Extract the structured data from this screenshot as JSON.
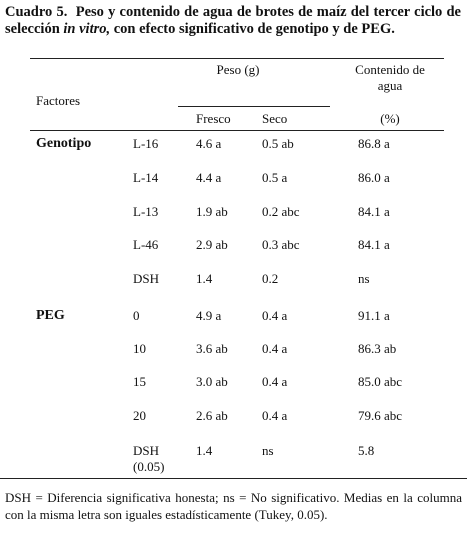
{
  "caption": {
    "label": "Cuadro 5.",
    "text_1": "Peso y contenido de agua de brotes de maíz del tercer ciclo de selección",
    "italic": "in vitro,",
    "text_2": "con efecto significativo de genotipo y de PEG."
  },
  "table": {
    "header": {
      "factores": "Factores",
      "peso": "Peso (g)",
      "fresco": "Fresco",
      "seco": "Seco",
      "agua": "Contenido de agua",
      "unit": "(%)"
    },
    "rows": [
      [
        "Genotipo",
        "L-16",
        "4.6 a",
        "0.5 ab",
        "86.8 a"
      ],
      [
        null,
        "L-14",
        "4.4 a",
        "0.5 a",
        "86.0 a"
      ],
      [
        null,
        "L-13",
        "1.9 ab",
        "0.2 abc",
        "84.1 a"
      ],
      [
        null,
        "L-46",
        "2.9 ab",
        "0.3 abc",
        "84.1 a"
      ],
      [
        null,
        "DSH",
        "1.4",
        "0.2",
        "ns"
      ],
      [
        "PEG",
        "0",
        "4.9 a",
        "0.4 a",
        "91.1 a"
      ],
      [
        null,
        "10",
        "3.6 ab",
        "0.4 a",
        "86.3 ab"
      ],
      [
        null,
        "15",
        "3.0 ab",
        "0.4 a",
        "85.0 abc"
      ],
      [
        null,
        "20",
        "2.6 ab",
        "0.4 a",
        "79.6 abc"
      ],
      [
        null,
        "DSH\n(0.05)",
        "1.4",
        "ns",
        "5.8"
      ]
    ]
  },
  "footnote": "DSH = Diferencia significativa honesta; ns = No significativo. Medias en la columna con la misma letra son iguales estadísticamente (Tukey, 0.05)."
}
